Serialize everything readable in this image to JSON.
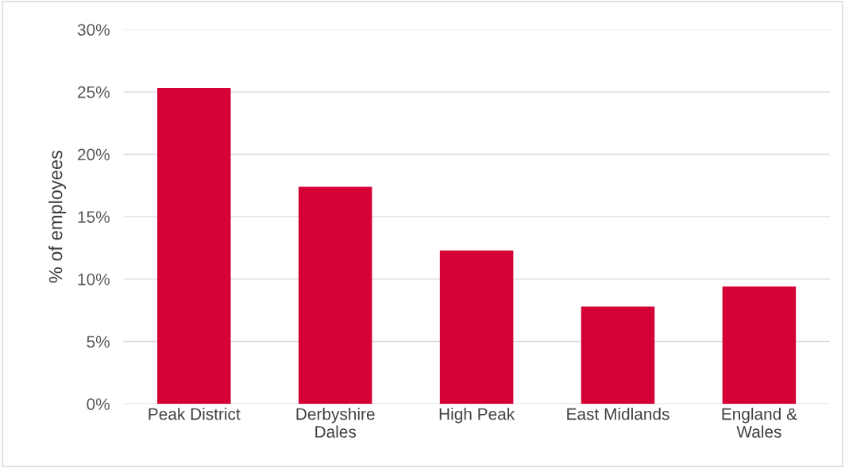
{
  "chart_data": {
    "type": "bar",
    "ylabel": "% of employees",
    "categories": [
      "Peak District",
      "Derbyshire\nDales",
      "High Peak",
      "East Midlands",
      "England &\nWales"
    ],
    "values": [
      25.3,
      17.4,
      12.3,
      7.8,
      9.4
    ],
    "color": "#d40036",
    "ylim": [
      0,
      30
    ],
    "yticks": [
      {
        "value": 0,
        "label": "0%"
      },
      {
        "value": 5,
        "label": "5%"
      },
      {
        "value": 10,
        "label": "10%"
      },
      {
        "value": 15,
        "label": "15%"
      },
      {
        "value": 20,
        "label": "20%"
      },
      {
        "value": 25,
        "label": "25%"
      },
      {
        "value": 30,
        "label": "30%"
      }
    ],
    "grid": "y",
    "legend": false
  }
}
